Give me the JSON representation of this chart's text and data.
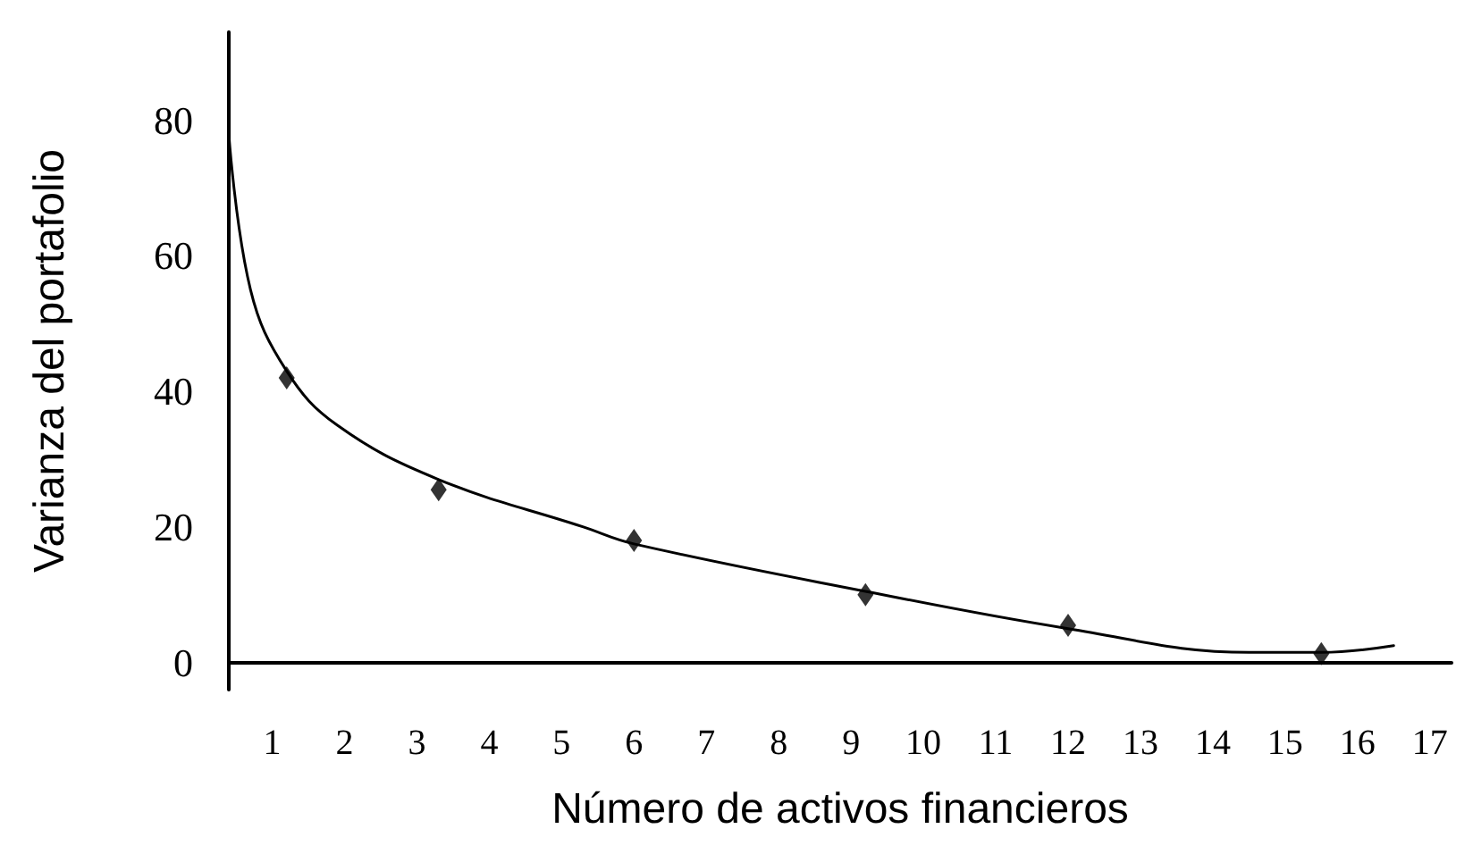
{
  "chart_data": {
    "type": "line",
    "xlabel": "Número de activos financieros",
    "ylabel": "Varianza del portafolio",
    "xlim": [
      0.4,
      17.3
    ],
    "xticks": [
      1,
      2,
      3,
      4,
      5,
      6,
      7,
      8,
      9,
      10,
      11,
      12,
      13,
      14,
      15,
      16,
      17
    ],
    "ylim": [
      -4,
      93
    ],
    "yticks": [
      0,
      20,
      40,
      60,
      80
    ],
    "grid": false,
    "series": [
      {
        "color": "#000000",
        "marker": "none",
        "x": [
          0.4,
          0.7,
          1.2,
          1.9,
          3.3,
          5.3,
          6,
          9.2,
          12,
          14.5,
          15.5,
          16.5
        ],
        "values": [
          78,
          55,
          43,
          35,
          27,
          20,
          17.5,
          10.5,
          5,
          1.5,
          1.5,
          2.5
        ]
      },
      {
        "type": "scatter",
        "color": "#000000",
        "marker": "diamond",
        "x": [
          1.2,
          3.3,
          6,
          9.2,
          12,
          15.5
        ],
        "values": [
          42,
          25.5,
          18,
          10,
          5.5,
          1.3
        ]
      }
    ]
  }
}
